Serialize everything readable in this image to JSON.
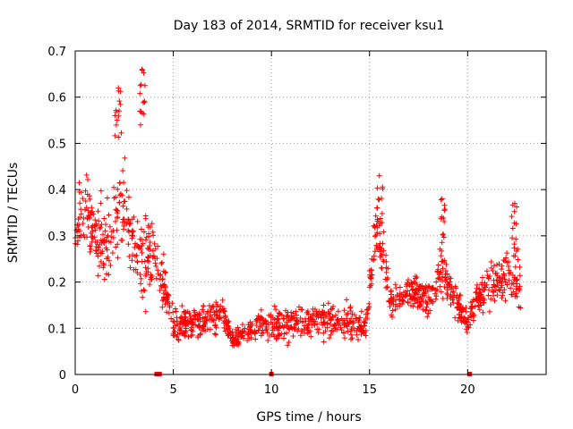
{
  "chart_data": {
    "type": "scatter",
    "title": "Day 183 of 2014, SRMTID for receiver ksu1",
    "xlabel": "GPS time / hours",
    "ylabel": "SRMTID / TECUs",
    "xlim": [
      0,
      24
    ],
    "ylim": [
      0,
      0.7
    ],
    "xticks": [
      0,
      5,
      10,
      15,
      20
    ],
    "yticks": [
      0,
      0.1,
      0.2,
      0.3,
      0.4,
      0.5,
      0.6,
      0.7
    ],
    "xtick_labels": [
      "0",
      "5",
      "10",
      "15",
      "20"
    ],
    "ytick_labels": [
      "0",
      "0.1",
      "0.2",
      "0.3",
      "0.4",
      "0.5",
      "0.6",
      "0.7"
    ],
    "grid": true,
    "marker": "+",
    "color": "#ff0000",
    "zero_markers_x": [
      4.15,
      4.3,
      10.0,
      20.1
    ],
    "series": [
      {
        "name": "SRMTID",
        "profile": [
          {
            "x": 0.0,
            "mean": 0.33,
            "spread": 0.09
          },
          {
            "x": 0.5,
            "mean": 0.36,
            "spread": 0.1
          },
          {
            "x": 1.0,
            "mean": 0.3,
            "spread": 0.1
          },
          {
            "x": 1.5,
            "mean": 0.29,
            "spread": 0.09
          },
          {
            "x": 2.0,
            "mean": 0.33,
            "spread": 0.12
          },
          {
            "x": 2.5,
            "mean": 0.38,
            "spread": 0.13
          },
          {
            "x": 3.0,
            "mean": 0.28,
            "spread": 0.1
          },
          {
            "x": 3.5,
            "mean": 0.25,
            "spread": 0.12
          },
          {
            "x": 4.0,
            "mean": 0.27,
            "spread": 0.08
          },
          {
            "x": 4.5,
            "mean": 0.2,
            "spread": 0.07
          },
          {
            "x": 5.0,
            "mean": 0.11,
            "spread": 0.04
          },
          {
            "x": 6.0,
            "mean": 0.11,
            "spread": 0.045
          },
          {
            "x": 7.0,
            "mean": 0.12,
            "spread": 0.045
          },
          {
            "x": 7.5,
            "mean": 0.14,
            "spread": 0.04
          },
          {
            "x": 8.0,
            "mean": 0.07,
            "spread": 0.025
          },
          {
            "x": 9.0,
            "mean": 0.1,
            "spread": 0.04
          },
          {
            "x": 10.0,
            "mean": 0.11,
            "spread": 0.045
          },
          {
            "x": 11.0,
            "mean": 0.11,
            "spread": 0.04
          },
          {
            "x": 12.0,
            "mean": 0.12,
            "spread": 0.045
          },
          {
            "x": 13.0,
            "mean": 0.12,
            "spread": 0.045
          },
          {
            "x": 14.0,
            "mean": 0.11,
            "spread": 0.045
          },
          {
            "x": 14.8,
            "mean": 0.1,
            "spread": 0.04
          },
          {
            "x": 15.3,
            "mean": 0.3,
            "spread": 0.08
          },
          {
            "x": 15.7,
            "mean": 0.28,
            "spread": 0.08
          },
          {
            "x": 16.0,
            "mean": 0.15,
            "spread": 0.04
          },
          {
            "x": 17.0,
            "mean": 0.18,
            "spread": 0.045
          },
          {
            "x": 18.0,
            "mean": 0.16,
            "spread": 0.045
          },
          {
            "x": 18.7,
            "mean": 0.22,
            "spread": 0.07
          },
          {
            "x": 19.5,
            "mean": 0.15,
            "spread": 0.05
          },
          {
            "x": 20.0,
            "mean": 0.11,
            "spread": 0.03
          },
          {
            "x": 20.5,
            "mean": 0.17,
            "spread": 0.05
          },
          {
            "x": 21.0,
            "mean": 0.19,
            "spread": 0.06
          },
          {
            "x": 21.5,
            "mean": 0.2,
            "spread": 0.06
          },
          {
            "x": 22.0,
            "mean": 0.21,
            "spread": 0.07
          },
          {
            "x": 22.6,
            "mean": 0.2,
            "spread": 0.06
          }
        ],
        "peaks": [
          {
            "x": 2.2,
            "y": 0.62
          },
          {
            "x": 3.4,
            "y": 0.66
          },
          {
            "x": 15.5,
            "y": 0.43
          },
          {
            "x": 18.7,
            "y": 0.38
          },
          {
            "x": 22.4,
            "y": 0.37
          }
        ],
        "x_range": [
          0.0,
          22.7
        ],
        "point_count": 1400
      }
    ]
  }
}
